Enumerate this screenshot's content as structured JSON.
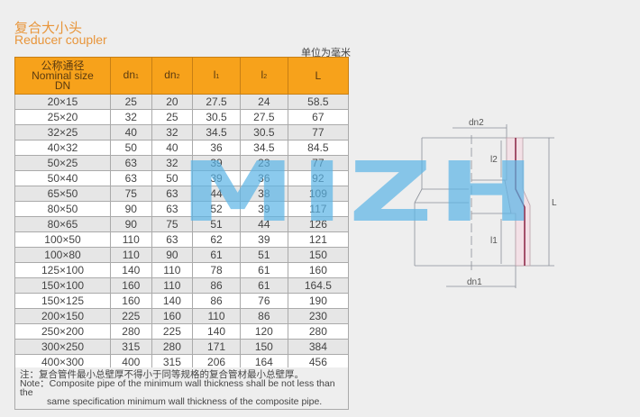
{
  "title_cn": "复合大小头",
  "title_en": "Reducer coupler",
  "unit": "单位为毫米",
  "headers": {
    "nominal_cn": "公称通径",
    "nominal_en": "Nominal size",
    "nominal_dn": "DN",
    "dn1": "dn",
    "dn1_sub": "1",
    "dn2": "dn",
    "dn2_sub": "2",
    "l1": "l",
    "l1_sub": "1",
    "l2": "l",
    "l2_sub": "2",
    "L": "L"
  },
  "rows": [
    [
      "20×15",
      "25",
      "20",
      "27.5",
      "24",
      "58.5"
    ],
    [
      "25×20",
      "32",
      "25",
      "30.5",
      "27.5",
      "67"
    ],
    [
      "32×25",
      "40",
      "32",
      "34.5",
      "30.5",
      "77"
    ],
    [
      "40×32",
      "50",
      "40",
      "36",
      "34.5",
      "84.5"
    ],
    [
      "50×25",
      "63",
      "32",
      "39",
      "23",
      "77"
    ],
    [
      "50×40",
      "63",
      "50",
      "39",
      "36",
      "92"
    ],
    [
      "65×50",
      "75",
      "63",
      "44",
      "38",
      "109"
    ],
    [
      "80×50",
      "90",
      "63",
      "52",
      "39",
      "117"
    ],
    [
      "80×65",
      "90",
      "75",
      "51",
      "44",
      "126"
    ],
    [
      "100×50",
      "110",
      "63",
      "62",
      "39",
      "121"
    ],
    [
      "100×80",
      "110",
      "90",
      "61",
      "51",
      "150"
    ],
    [
      "125×100",
      "140",
      "110",
      "78",
      "61",
      "160"
    ],
    [
      "150×100",
      "160",
      "110",
      "86",
      "61",
      "164.5"
    ],
    [
      "150×125",
      "160",
      "140",
      "86",
      "76",
      "190"
    ],
    [
      "200×150",
      "225",
      "160",
      "110",
      "86",
      "230"
    ],
    [
      "250×200",
      "280",
      "225",
      "140",
      "120",
      "280"
    ],
    [
      "300×250",
      "315",
      "280",
      "171",
      "150",
      "384"
    ],
    [
      "400×300",
      "400",
      "315",
      "206",
      "164",
      "456"
    ]
  ],
  "note": {
    "cn": "注：复合管件最小总壁厚不得小于同等规格的复合管材最小总壁厚。",
    "en1": "Note：Composite pipe of the minimum wall thickness shall be not less than the",
    "en2": "same specification minimum wall thickness of the composite pipe."
  },
  "diagram": {
    "dn2": "dn2",
    "l2": "l2",
    "L": "L",
    "l1": "l1",
    "dn1": "dn1"
  },
  "watermark": "MIZH"
}
